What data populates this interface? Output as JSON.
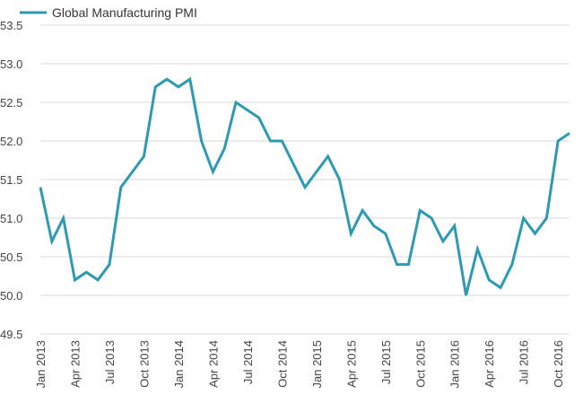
{
  "chart_data": {
    "type": "line",
    "title": "",
    "xlabel": "",
    "ylabel": "",
    "ylim": [
      49.5,
      53.5
    ],
    "yticks": [
      49.5,
      50.0,
      50.5,
      51.0,
      51.5,
      52.0,
      52.5,
      53.0,
      53.5
    ],
    "ytick_labels": [
      "49.5",
      "50.0",
      "50.5",
      "51.0",
      "51.5",
      "52.0",
      "52.5",
      "53.0",
      "53.5"
    ],
    "grid": true,
    "legend_position": "top-left",
    "x": [
      "Jan 2013",
      "Feb 2013",
      "Mar 2013",
      "Apr 2013",
      "May 2013",
      "Jun 2013",
      "Jul 2013",
      "Aug 2013",
      "Sep 2013",
      "Oct 2013",
      "Nov 2013",
      "Dec 2013",
      "Jan 2014",
      "Feb 2014",
      "Mar 2014",
      "Apr 2014",
      "May 2014",
      "Jun 2014",
      "Jul 2014",
      "Aug 2014",
      "Sep 2014",
      "Oct 2014",
      "Nov 2014",
      "Dec 2014",
      "Jan 2015",
      "Feb 2015",
      "Mar 2015",
      "Apr 2015",
      "May 2015",
      "Jun 2015",
      "Jul 2015",
      "Aug 2015",
      "Sep 2015",
      "Oct 2015",
      "Nov 2015",
      "Dec 2015",
      "Jan 2016",
      "Feb 2016",
      "Mar 2016",
      "Apr 2016",
      "May 2016",
      "Jun 2016",
      "Jul 2016",
      "Aug 2016",
      "Sep 2016",
      "Oct 2016",
      "Nov 2016"
    ],
    "xtick_labels": [
      "Jan 2013",
      "Apr 2013",
      "Jul 2013",
      "Oct 2013",
      "Jan 2014",
      "Apr 2014",
      "Jul 2014",
      "Oct 2014",
      "Jan 2015",
      "Apr 2015",
      "Jul 2015",
      "Oct 2015",
      "Jan 2016",
      "Apr 2016",
      "Jul 2016",
      "Oct 2016"
    ],
    "series": [
      {
        "name": "Global Manufacturing PMI",
        "color": "#2e9ab2",
        "values": [
          51.4,
          50.7,
          51.0,
          50.2,
          50.3,
          50.2,
          50.4,
          51.4,
          51.6,
          51.8,
          52.7,
          52.8,
          52.7,
          52.8,
          52.0,
          51.6,
          51.9,
          52.5,
          52.4,
          52.3,
          52.0,
          52.0,
          51.7,
          51.4,
          51.6,
          51.8,
          51.5,
          50.8,
          51.1,
          50.9,
          50.8,
          50.4,
          50.4,
          51.1,
          51.0,
          50.7,
          50.9,
          50.0,
          50.6,
          50.2,
          50.1,
          50.4,
          51.0,
          50.8,
          51.0,
          52.0,
          52.1
        ]
      }
    ]
  }
}
